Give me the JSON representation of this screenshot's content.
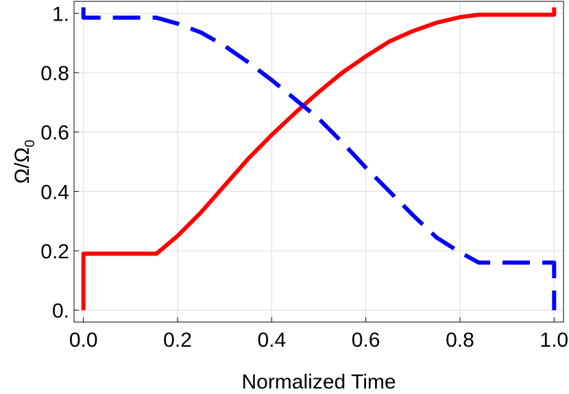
{
  "chart_data": {
    "type": "line",
    "title": "",
    "xlabel": "Normalized Time",
    "ylabel": {
      "main": "Ω/Ω",
      "subscript": "0"
    },
    "xlim": [
      -0.02,
      1.02
    ],
    "ylim": [
      -0.04,
      1.04
    ],
    "x_ticks": [
      {
        "value": 0.0,
        "label": "0.0"
      },
      {
        "value": 0.2,
        "label": "0.2"
      },
      {
        "value": 0.4,
        "label": "0.4"
      },
      {
        "value": 0.6,
        "label": "0.6"
      },
      {
        "value": 0.8,
        "label": "0.8"
      },
      {
        "value": 1.0,
        "label": "1.0"
      }
    ],
    "y_ticks": [
      {
        "value": 0.0,
        "label": "0."
      },
      {
        "value": 0.2,
        "label": "0.2"
      },
      {
        "value": 0.4,
        "label": "0.4"
      },
      {
        "value": 0.6,
        "label": "0.6"
      },
      {
        "value": 0.8,
        "label": "0.8"
      },
      {
        "value": 1.0,
        "label": "1."
      }
    ],
    "grid": true,
    "legend": "none",
    "series": [
      {
        "color": "#ff0000",
        "style": "solid",
        "points": [
          [
            0.0,
            0.0
          ],
          [
            0.0,
            0.19
          ],
          [
            0.155,
            0.19
          ],
          [
            0.2,
            0.25
          ],
          [
            0.25,
            0.33
          ],
          [
            0.3,
            0.42
          ],
          [
            0.35,
            0.51
          ],
          [
            0.4,
            0.59
          ],
          [
            0.45,
            0.665
          ],
          [
            0.5,
            0.735
          ],
          [
            0.55,
            0.8
          ],
          [
            0.6,
            0.855
          ],
          [
            0.65,
            0.905
          ],
          [
            0.7,
            0.94
          ],
          [
            0.75,
            0.968
          ],
          [
            0.8,
            0.987
          ],
          [
            0.84,
            0.995
          ],
          [
            1.0,
            0.995
          ],
          [
            1.0,
            1.02
          ]
        ]
      },
      {
        "color": "#0000ff",
        "style": "dashed",
        "points": [
          [
            0.0,
            1.02
          ],
          [
            0.0,
            0.985
          ],
          [
            0.155,
            0.985
          ],
          [
            0.2,
            0.965
          ],
          [
            0.25,
            0.935
          ],
          [
            0.3,
            0.89
          ],
          [
            0.35,
            0.835
          ],
          [
            0.4,
            0.775
          ],
          [
            0.45,
            0.71
          ],
          [
            0.5,
            0.645
          ],
          [
            0.55,
            0.565
          ],
          [
            0.6,
            0.48
          ],
          [
            0.65,
            0.4
          ],
          [
            0.7,
            0.32
          ],
          [
            0.75,
            0.245
          ],
          [
            0.8,
            0.195
          ],
          [
            0.84,
            0.16
          ],
          [
            1.0,
            0.16
          ],
          [
            1.0,
            0.0
          ]
        ]
      }
    ]
  }
}
